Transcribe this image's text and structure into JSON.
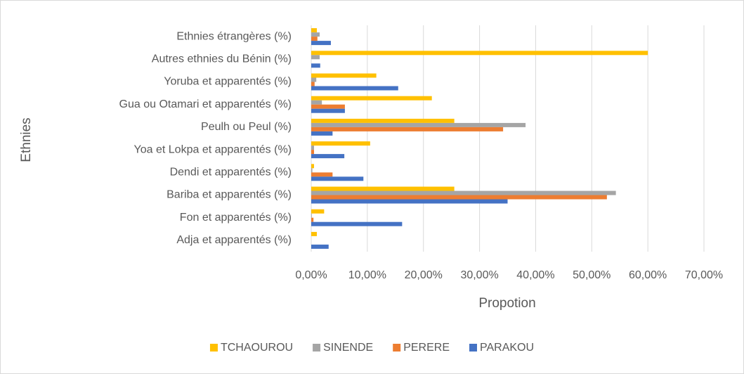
{
  "chart_data": {
    "type": "bar",
    "orientation": "horizontal",
    "x_label": "Propotion",
    "y_label": "Ethnies",
    "categories": [
      "Adja et apparentés (%)",
      "Fon et apparentés (%)",
      "Bariba et apparentés (%)",
      "Dendi et apparentés (%)",
      "Yoa et Lokpa et apparentés (%)",
      "Peulh ou Peul (%)",
      "Gua ou Otamari et apparentés (%)",
      "Yoruba et apparentés (%)",
      "Autres ethnies du Bénin (%)",
      "Ethnies étrangères (%)"
    ],
    "series": [
      {
        "name": "TCHAOUROU",
        "color": "#FFC000",
        "values": [
          1.0,
          2.3,
          25.5,
          0.5,
          10.5,
          25.5,
          21.5,
          11.6,
          60.0,
          1.0
        ]
      },
      {
        "name": "SINENDE",
        "color": "#A5A5A5",
        "values": [
          0,
          0.1,
          54.3,
          0.2,
          0.5,
          38.2,
          1.9,
          0.9,
          1.5,
          1.5
        ]
      },
      {
        "name": "PERERE",
        "color": "#ED7D31",
        "values": [
          0,
          0.4,
          52.7,
          3.8,
          0.5,
          34.2,
          6.0,
          0.6,
          0,
          1.1
        ]
      },
      {
        "name": "PARAKOU",
        "color": "#4472C4",
        "values": [
          3.1,
          16.2,
          35.0,
          9.3,
          5.9,
          3.8,
          6.0,
          15.5,
          1.6,
          3.5
        ]
      }
    ],
    "xlim": [
      0,
      70
    ],
    "xticks": [
      {
        "value": 0,
        "label": "0,00%"
      },
      {
        "value": 10,
        "label": "10,00%"
      },
      {
        "value": 20,
        "label": "20,00%"
      },
      {
        "value": 30,
        "label": "30,00%"
      },
      {
        "value": 40,
        "label": "40,00%"
      },
      {
        "value": 50,
        "label": "50,00%"
      },
      {
        "value": 60,
        "label": "60,00%"
      },
      {
        "value": 70,
        "label": "70,00%"
      }
    ],
    "grid": true,
    "legend": "bottom"
  }
}
